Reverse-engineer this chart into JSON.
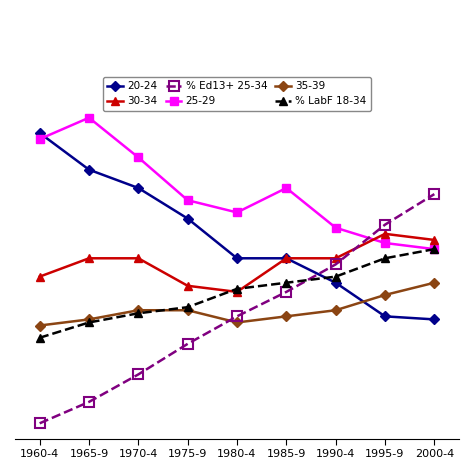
{
  "x_labels": [
    "1960-4",
    "1965-9",
    "1970-4",
    "1975-9",
    "1980-4",
    "1985-9",
    "1990-4",
    "1995-9",
    "2000-4"
  ],
  "x_values": [
    0,
    1,
    2,
    3,
    4,
    5,
    6,
    7,
    8
  ],
  "series_20_24": {
    "color": "#00008B",
    "marker": "D",
    "markersize": 5,
    "linestyle": "-",
    "linewidth": 1.8,
    "values": [
      8.5,
      7.3,
      6.7,
      5.7,
      4.4,
      4.4,
      3.6,
      2.5,
      2.4
    ]
  },
  "series_25_29": {
    "color": "#FF00FF",
    "marker": "s",
    "markersize": 6,
    "linestyle": "-",
    "linewidth": 1.8,
    "values": [
      8.3,
      9.0,
      7.7,
      6.3,
      5.9,
      6.7,
      5.4,
      4.9,
      4.7
    ]
  },
  "series_30_34": {
    "color": "#CC0000",
    "marker": "^",
    "markersize": 6,
    "linestyle": "-",
    "linewidth": 1.8,
    "values": [
      3.8,
      4.4,
      4.4,
      3.5,
      3.3,
      4.4,
      4.4,
      5.2,
      5.0
    ]
  },
  "series_35_39": {
    "color": "#8B4513",
    "marker": "D",
    "markersize": 5,
    "linestyle": "-",
    "linewidth": 1.8,
    "values": [
      2.2,
      2.4,
      2.7,
      2.7,
      2.3,
      2.5,
      2.7,
      3.2,
      3.6
    ]
  },
  "series_ed": {
    "color": "#800080",
    "marker": "s",
    "markersize": 7,
    "linestyle": "--",
    "linewidth": 1.8,
    "x_values": [
      0,
      1,
      2,
      3,
      4,
      5,
      6,
      7,
      8
    ],
    "values": [
      -1.0,
      -0.3,
      0.6,
      1.6,
      2.5,
      3.3,
      4.2,
      5.5,
      6.5
    ]
  },
  "series_labf": {
    "color": "#000000",
    "marker": "^",
    "markersize": 6,
    "linestyle": "--",
    "linewidth": 1.8,
    "values": [
      1.8,
      2.3,
      2.6,
      2.8,
      3.4,
      3.6,
      3.8,
      4.4,
      4.7
    ]
  },
  "ylim": [
    -1.5,
    10.5
  ],
  "background_color": "#ffffff",
  "legend_fontsize": 7.5,
  "tick_fontsize": 8,
  "grid_color": "#bbbbbb",
  "grid_linewidth": 0.7
}
